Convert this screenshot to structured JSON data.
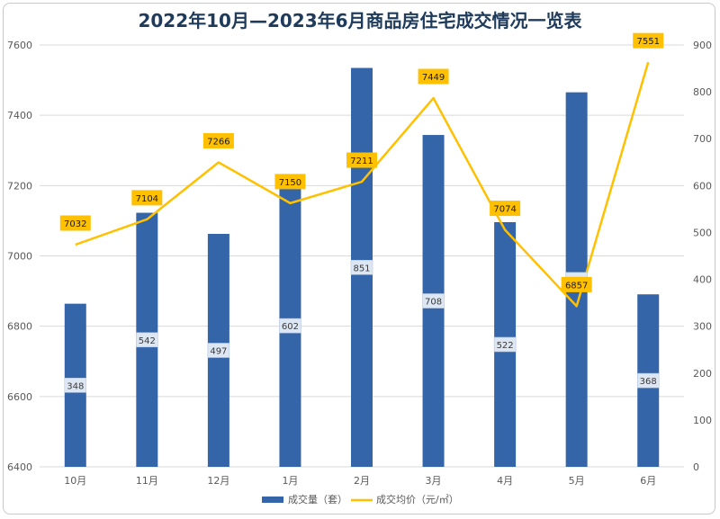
{
  "chart_data": {
    "type": "bar",
    "title": "2022年10月—2023年6月商品房住宅成交情况一览表",
    "categories": [
      "10月",
      "11月",
      "12月",
      "1月",
      "2月",
      "3月",
      "4月",
      "5月",
      "6月"
    ],
    "series": [
      {
        "name": "成交量（套）",
        "type": "bar",
        "axis": "right",
        "color": "#3565a9",
        "values": [
          348,
          542,
          497,
          602,
          851,
          708,
          522,
          799,
          368
        ]
      },
      {
        "name": "成交均价（元/㎡）",
        "type": "line",
        "axis": "left",
        "color": "#ffc000",
        "values": [
          7032,
          7104,
          7266,
          7150,
          7211,
          7449,
          7074,
          6857,
          7551
        ]
      }
    ],
    "y_left": {
      "min": 6400,
      "max": 7600,
      "ticks": [
        6400,
        6600,
        6800,
        7000,
        7200,
        7400,
        7600
      ]
    },
    "y_right": {
      "min": 0,
      "max": 900,
      "ticks": [
        0,
        100,
        200,
        300,
        400,
        500,
        600,
        700,
        800,
        900
      ]
    },
    "grid": true,
    "legend_position": "bottom"
  }
}
